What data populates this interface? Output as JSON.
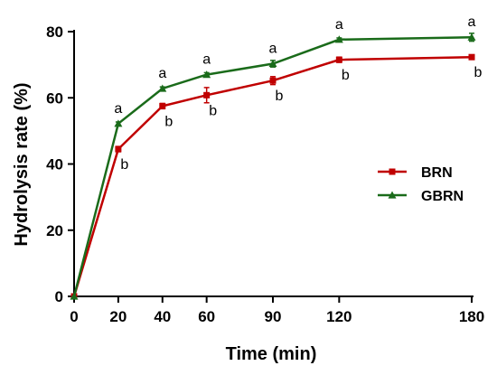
{
  "chart_data": {
    "type": "line",
    "xlabel": "Time (min)",
    "ylabel": "Hydrolysis rate (%)",
    "x": [
      0,
      20,
      40,
      60,
      90,
      120,
      180
    ],
    "xticks": [
      "0",
      "20",
      "40",
      "60",
      "90",
      "120",
      "180"
    ],
    "yticks": [
      "0",
      "20",
      "40",
      "60",
      "80"
    ],
    "xlim": [
      0,
      180
    ],
    "ylim": [
      0,
      80
    ],
    "grid": false,
    "legend_position": "right",
    "series": [
      {
        "name": "BRN",
        "color": "#c00000",
        "marker": "square",
        "values": [
          0,
          44.5,
          57.5,
          60.8,
          65.2,
          71.5,
          72.3
        ],
        "errors": [
          0,
          0.8,
          0.8,
          2.3,
          1.2,
          0.8,
          0.6
        ],
        "significance": [
          "",
          "b",
          "b",
          "b",
          "b",
          "b",
          "b"
        ]
      },
      {
        "name": "GBRN",
        "color": "#1a6b1a",
        "marker": "triangle",
        "values": [
          0,
          52.2,
          62.8,
          67.0,
          70.3,
          77.6,
          78.3
        ],
        "errors": [
          0,
          0.5,
          0.5,
          0.6,
          1.0,
          0.5,
          1.2
        ],
        "significance": [
          "",
          "a",
          "a",
          "a",
          "a",
          "a",
          "a"
        ]
      }
    ]
  }
}
